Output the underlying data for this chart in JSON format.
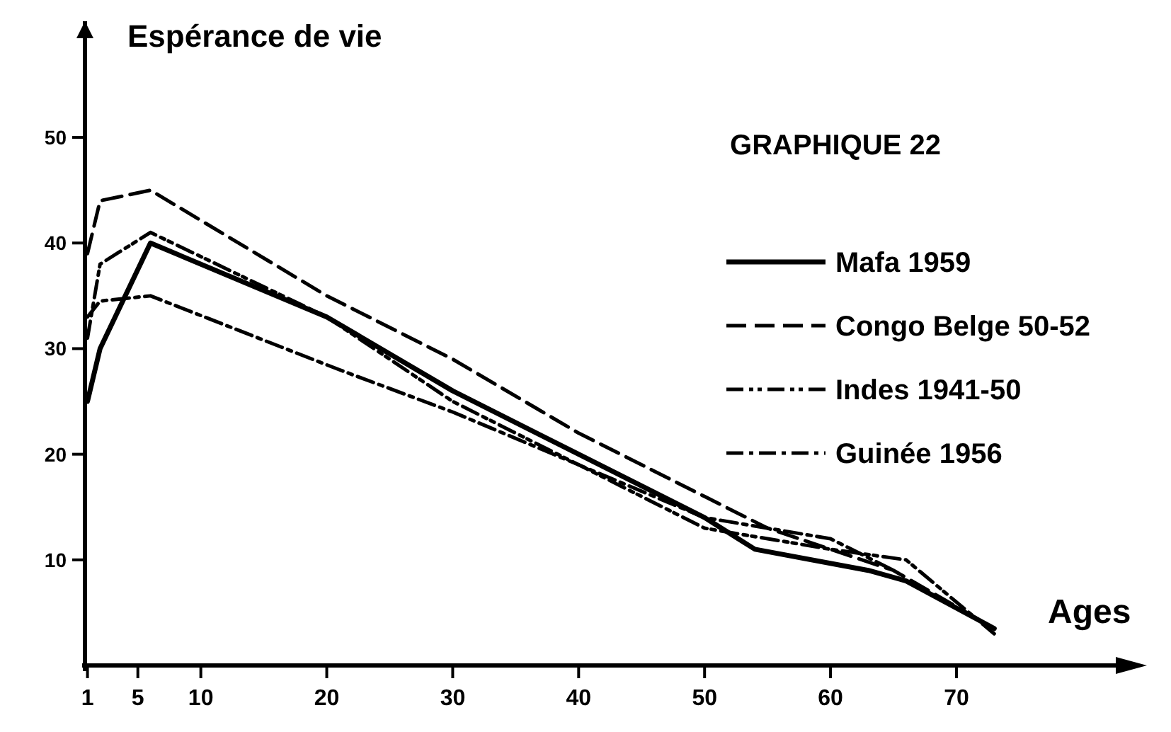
{
  "chart_data": {
    "type": "line",
    "title": "GRAPHIQUE 22",
    "ylabel": "Espérance de vie",
    "xlabel": "Ages",
    "xlim": [
      0.8,
      84
    ],
    "xticks": [
      1,
      5,
      10,
      20,
      30,
      40,
      50,
      60,
      70
    ],
    "ylim": [
      0,
      61
    ],
    "yticks": [
      10,
      20,
      30,
      40,
      50
    ],
    "grid": false,
    "legend": "right",
    "marker": "none",
    "series": [
      {
        "name": "Mafa 1959",
        "color": "#000000",
        "line_style": "solid",
        "x": [
          1,
          2,
          6,
          20,
          30,
          40,
          50,
          54,
          63,
          66,
          73
        ],
        "values": [
          25,
          30,
          40,
          33,
          26,
          20,
          14,
          11,
          9,
          8,
          3.5
        ]
      },
      {
        "name": "Congo Belge 50-52",
        "color": "#000000",
        "line_style": "dashed",
        "x": [
          1,
          2,
          6,
          20,
          30,
          40,
          50,
          55,
          65,
          73
        ],
        "values": [
          39,
          44,
          45,
          35,
          29,
          22,
          16,
          13,
          9,
          3.5
        ]
      },
      {
        "name": "Indes 1941-50",
        "color": "#000000",
        "line_style": "dashdotdot",
        "x": [
          1,
          2,
          6,
          20,
          30,
          40,
          50,
          60,
          66,
          73
        ],
        "values": [
          31,
          38,
          41,
          33,
          25,
          19,
          13,
          11,
          10,
          3
        ]
      },
      {
        "name": "Guinée 1956",
        "color": "#000000",
        "line_style": "dashdot",
        "x": [
          1,
          2,
          6,
          21,
          30,
          40,
          50,
          60,
          65
        ],
        "values": [
          33,
          34.5,
          35,
          28,
          24,
          19,
          14,
          12,
          9
        ]
      }
    ]
  }
}
